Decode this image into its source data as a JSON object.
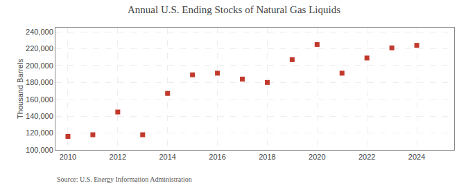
{
  "chart_data": {
    "type": "scatter",
    "title": "Annual U.S. Ending Stocks of Natural Gas Liquids",
    "ylabel": "Thousand Barrels",
    "annotation": "Source: U.S. Energy Information Administration",
    "x": [
      2010,
      2011,
      2012,
      2013,
      2014,
      2015,
      2016,
      2017,
      2018,
      2019,
      2020,
      2021,
      2022,
      2023,
      2024
    ],
    "values": [
      116000,
      118000,
      145000,
      118000,
      167000,
      189000,
      191000,
      184000,
      180000,
      207000,
      225000,
      191000,
      209000,
      221000,
      224000
    ],
    "color": "#c0392b",
    "marker": "square",
    "xlim": [
      2009.5,
      2025.5
    ],
    "xticks": [
      2010,
      2012,
      2014,
      2016,
      2018,
      2020,
      2022,
      2024
    ],
    "ylim": [
      100000,
      245000
    ],
    "yticks": [
      {
        "value": 100000,
        "label": "100,000"
      },
      {
        "value": 120000,
        "label": "120,000"
      },
      {
        "value": 140000,
        "label": "140,000"
      },
      {
        "value": 160000,
        "label": "160,000"
      },
      {
        "value": 180000,
        "label": "180,000"
      },
      {
        "value": 200000,
        "label": "200,000"
      },
      {
        "value": 220000,
        "label": "220,000"
      },
      {
        "value": 240000,
        "label": "240,000"
      }
    ],
    "grid": true
  }
}
